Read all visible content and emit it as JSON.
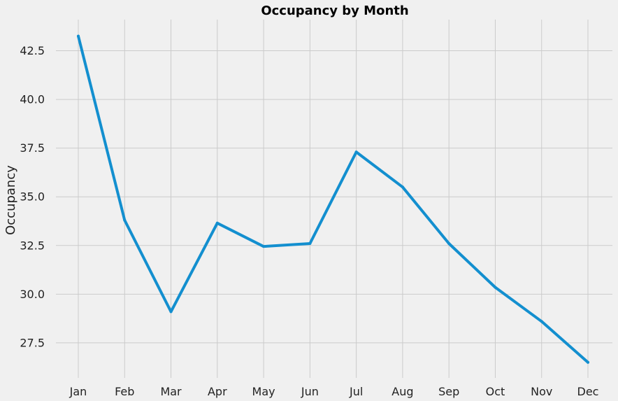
{
  "chart_data": {
    "type": "line",
    "title": "Occupancy by Month",
    "xlabel": "",
    "ylabel": "Occupancy",
    "categories": [
      "Jan",
      "Feb",
      "Mar",
      "Apr",
      "May",
      "Jun",
      "Jul",
      "Aug",
      "Sep",
      "Oct",
      "Nov",
      "Dec"
    ],
    "series": [
      {
        "values": [
          43.25,
          33.8,
          29.1,
          33.65,
          32.45,
          32.6,
          37.3,
          35.5,
          32.6,
          30.35,
          28.6,
          26.5
        ]
      }
    ],
    "yticks": [
      "27.5",
      "30.0",
      "32.5",
      "35.0",
      "37.5",
      "40.0",
      "42.5"
    ],
    "ytick_values": [
      27.5,
      30.0,
      32.5,
      35.0,
      37.5,
      40.0,
      42.5
    ],
    "ylim": [
      25.7,
      44.1
    ],
    "grid": true,
    "colors": {
      "line": "#138fcf",
      "background": "#f0f0f0",
      "grid": "#cbcbcb"
    }
  }
}
